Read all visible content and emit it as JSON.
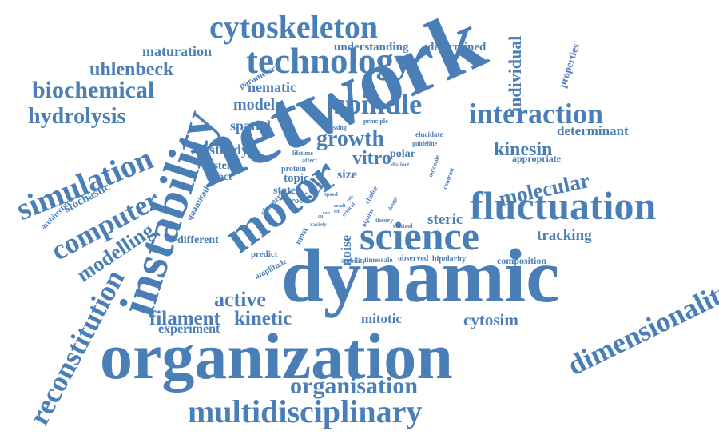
{
  "palette": {
    "text": "#4a7eb6",
    "background": "#ffffff"
  },
  "words": [
    {
      "id": "organization",
      "text": "organization"
    },
    {
      "id": "dynamic",
      "text": "dynamic"
    },
    {
      "id": "network",
      "text": "network"
    },
    {
      "id": "instability",
      "text": "instability"
    },
    {
      "id": "motor",
      "text": "motor"
    },
    {
      "id": "science",
      "text": "science"
    },
    {
      "id": "fluctuation",
      "text": "fluctuation"
    },
    {
      "id": "technology",
      "text": "technology"
    },
    {
      "id": "cytoskeleton",
      "text": "cytoskeleton"
    },
    {
      "id": "multidisciplinary",
      "text": "multidisciplinary"
    },
    {
      "id": "reconstitution",
      "text": "reconstitution"
    },
    {
      "id": "dimensionality",
      "text": "dimensionality"
    },
    {
      "id": "spindle",
      "text": "spindle"
    },
    {
      "id": "interaction",
      "text": "interaction"
    },
    {
      "id": "simulation",
      "text": "simulation"
    },
    {
      "id": "computer",
      "text": "computer"
    },
    {
      "id": "organisation",
      "text": "organisation"
    },
    {
      "id": "molecular",
      "text": "molecular"
    },
    {
      "id": "biochemical",
      "text": "biochemical"
    },
    {
      "id": "hydrolysis",
      "text": "hydrolysis"
    },
    {
      "id": "uhlenbeck",
      "text": "uhlenbeck"
    },
    {
      "id": "growth",
      "text": "growth"
    },
    {
      "id": "kinesin",
      "text": "kinesin"
    },
    {
      "id": "active",
      "text": "active"
    },
    {
      "id": "filament",
      "text": "filament"
    },
    {
      "id": "kinetic",
      "text": "kinetic"
    },
    {
      "id": "modelling",
      "text": "modelling"
    },
    {
      "id": "individual",
      "text": "individual"
    },
    {
      "id": "cytosim",
      "text": "cytosim"
    },
    {
      "id": "tracking",
      "text": "tracking"
    },
    {
      "id": "maturation",
      "text": "maturation"
    },
    {
      "id": "understanding",
      "text": "understanding"
    },
    {
      "id": "determined",
      "text": "determined"
    },
    {
      "id": "model",
      "text": "model"
    },
    {
      "id": "nematic",
      "text": "nematic"
    },
    {
      "id": "spatial",
      "text": "spatial"
    },
    {
      "id": "steady",
      "text": "steady"
    },
    {
      "id": "self",
      "text": "self"
    },
    {
      "id": "vitro",
      "text": "vitro"
    },
    {
      "id": "steric",
      "text": "steric"
    },
    {
      "id": "determinant",
      "text": "determinant"
    },
    {
      "id": "stochastic",
      "text": "stochastic"
    },
    {
      "id": "mitotic",
      "text": "mitotic"
    },
    {
      "id": "experiment",
      "text": "experiment"
    },
    {
      "id": "noise",
      "text": "noise"
    },
    {
      "id": "system",
      "text": "system"
    },
    {
      "id": "effect",
      "text": "effect"
    },
    {
      "id": "topic",
      "text": "topic"
    },
    {
      "id": "state",
      "text": "state"
    },
    {
      "id": "size",
      "text": "size"
    },
    {
      "id": "polar",
      "text": "polar"
    },
    {
      "id": "different",
      "text": "different"
    },
    {
      "id": "composition",
      "text": "composition"
    },
    {
      "id": "appropriate",
      "text": "appropriate"
    },
    {
      "id": "properties",
      "text": "properties"
    },
    {
      "id": "architecture",
      "text": "architecture"
    },
    {
      "id": "parameter",
      "text": "parameter"
    },
    {
      "id": "quantitative",
      "text": "quantitative"
    },
    {
      "id": "predict",
      "text": "predict"
    },
    {
      "id": "amplitude",
      "text": "amplitude"
    },
    {
      "id": "most",
      "text": "most"
    },
    {
      "id": "chapter",
      "text": "chapter"
    },
    {
      "id": "observed",
      "text": "observed"
    },
    {
      "id": "timescale",
      "text": "timescale"
    },
    {
      "id": "bipolarity",
      "text": "bipolarity"
    },
    {
      "id": "stability",
      "text": "stability"
    },
    {
      "id": "elucidate",
      "text": "elucidate"
    },
    {
      "id": "guideline",
      "text": "guideline"
    },
    {
      "id": "principle",
      "text": "principle"
    },
    {
      "id": "crossing",
      "text": "crossing"
    },
    {
      "id": "protein",
      "text": "protein"
    },
    {
      "id": "lifetime",
      "text": "lifetime"
    },
    {
      "id": "affect",
      "text": "affect"
    },
    {
      "id": "distinct",
      "text": "distinct"
    },
    {
      "id": "choice",
      "text": "choice"
    },
    {
      "id": "outcome",
      "text": "outcome"
    },
    {
      "id": "contrast",
      "text": "contrast"
    },
    {
      "id": "design",
      "text": "design"
    },
    {
      "id": "theory",
      "text": "theory"
    },
    {
      "id": "control",
      "text": "control"
    },
    {
      "id": "bipolar",
      "text": "bipolar"
    },
    {
      "id": "variety",
      "text": "variety"
    },
    {
      "id": "critical",
      "text": "critical"
    },
    {
      "id": "process",
      "text": "proc"
    },
    {
      "id": "speed",
      "text": "speed"
    },
    {
      "id": "result",
      "text": "result"
    },
    {
      "id": "role",
      "text": "role"
    },
    {
      "id": "tell",
      "text": "tell"
    },
    {
      "id": "can",
      "text": "can"
    },
    {
      "id": "ou",
      "text": "ou"
    }
  ]
}
